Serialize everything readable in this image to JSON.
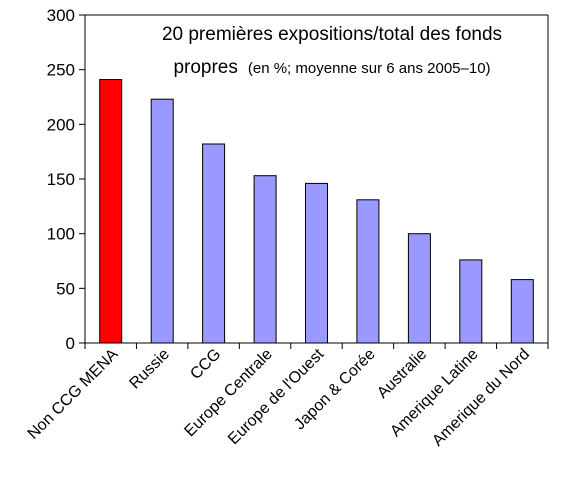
{
  "chart_data": {
    "type": "bar",
    "title": "20 premières expositions/total des fonds",
    "title_line2": "propres",
    "subtitle": "(en %; moyenne sur 6 ans 2005–10)",
    "categories": [
      "Non CCG MENA",
      "Russie",
      "CCG",
      "Europe Centrale",
      "Europe de l'Ouest",
      "Japon & Corée",
      "Australie",
      "Amerique Latine",
      "Amerique du Nord"
    ],
    "values": [
      241,
      223,
      182,
      153,
      146,
      131,
      100,
      76,
      58
    ],
    "bar_colors": [
      "#ff0000",
      "#9999ff",
      "#9999ff",
      "#9999ff",
      "#9999ff",
      "#9999ff",
      "#9999ff",
      "#9999ff",
      "#9999ff"
    ],
    "ylim": [
      0,
      300
    ],
    "yticks": [
      0,
      50,
      100,
      150,
      200,
      250,
      300
    ],
    "grid": false,
    "legend": "none"
  }
}
